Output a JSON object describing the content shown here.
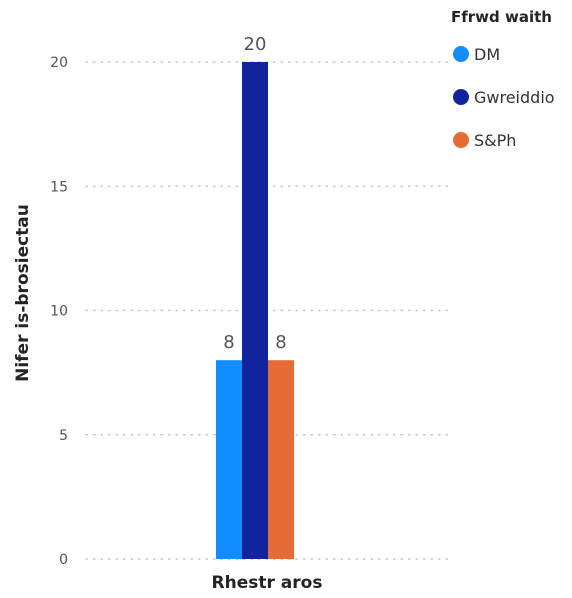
{
  "chart_data": {
    "type": "bar",
    "categories": [
      "Rhestr aros"
    ],
    "series": [
      {
        "name": "DM",
        "values": [
          8
        ],
        "color": "#118DFF"
      },
      {
        "name": "Gwreiddio",
        "values": [
          20
        ],
        "color": "#12239E"
      },
      {
        "name": "S&Ph",
        "values": [
          8
        ],
        "color": "#E66C37"
      }
    ],
    "title": "",
    "xlabel": "Rhestr aros",
    "ylabel": "Nifer is-brosiectau",
    "ylim": [
      0,
      20
    ],
    "yticks": [
      0,
      5,
      10,
      15,
      20
    ],
    "grid": true,
    "legend": {
      "title": "Ffrwd waith",
      "position": "top-right"
    },
    "data_labels": true
  }
}
